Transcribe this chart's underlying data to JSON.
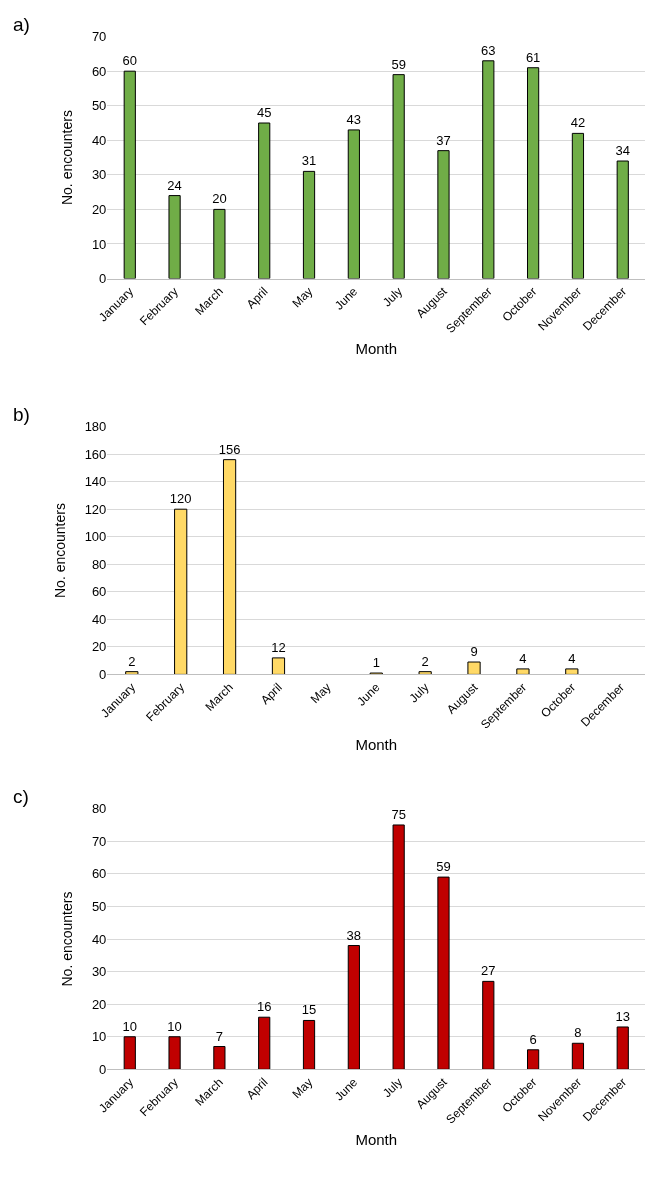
{
  "chart_data": [
    {
      "type": "bar",
      "title": "a)",
      "xlabel": "Month",
      "ylabel": "No. encounters",
      "categories": [
        "January",
        "February",
        "March",
        "April",
        "May",
        "June",
        "July",
        "August",
        "September",
        "October",
        "November",
        "December"
      ],
      "values": [
        60,
        24,
        20,
        45,
        31,
        43,
        59,
        37,
        63,
        61,
        42,
        34
      ],
      "color": "#70ad47",
      "ylim": [
        0,
        70
      ],
      "yticks": [
        0,
        10,
        20,
        30,
        40,
        50,
        60,
        70
      ],
      "grid": "y",
      "data_labels": true
    },
    {
      "type": "bar",
      "title": "b)",
      "xlabel": "Month",
      "ylabel": "No. encounters",
      "categories": [
        "January",
        "February",
        "March",
        "April",
        "May",
        "June",
        "July",
        "August",
        "September",
        "October",
        "December"
      ],
      "values": [
        2,
        120,
        156,
        12,
        null,
        1,
        2,
        9,
        4,
        4,
        null
      ],
      "value_labels": [
        "2",
        "120",
        "156",
        "12",
        null,
        "1",
        "2",
        "9",
        "4",
        "4",
        null
      ],
      "color": "#ffd966",
      "ylim": [
        0,
        180
      ],
      "yticks": [
        0,
        20,
        40,
        60,
        80,
        100,
        120,
        140,
        160,
        180
      ],
      "grid": "y"
    },
    {
      "type": "bar",
      "title": "c)",
      "xlabel": "Month",
      "ylabel": "No. encounters",
      "categories": [
        "January",
        "February",
        "March",
        "April",
        "May",
        "June",
        "July",
        "August",
        "September",
        "October",
        "November",
        "December"
      ],
      "values": [
        10,
        10,
        7,
        16,
        15,
        38,
        75,
        59,
        27,
        6,
        8,
        13
      ],
      "color": "#c00000",
      "ylim": [
        0,
        80
      ],
      "yticks": [
        0,
        10,
        20,
        30,
        40,
        50,
        60,
        70,
        80
      ],
      "grid": "y",
      "data_labels": true
    }
  ]
}
